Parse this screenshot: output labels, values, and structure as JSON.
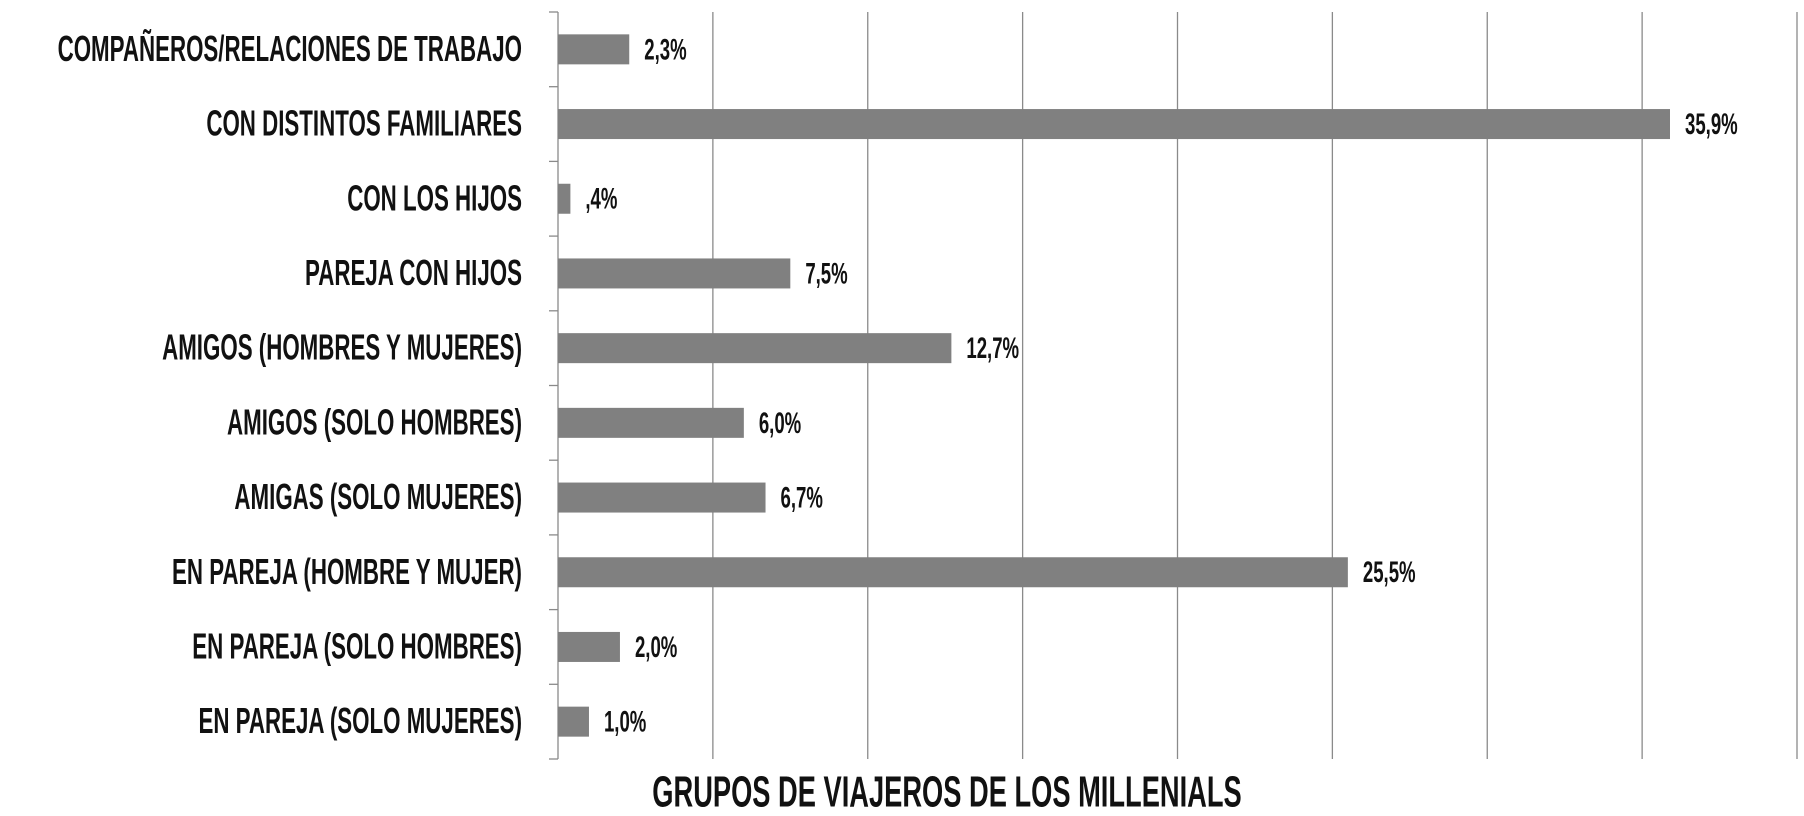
{
  "chart_data": {
    "type": "bar",
    "orientation": "horizontal",
    "title": "GRUPOS DE VIAJEROS DE LOS MILLENIALS",
    "categories": [
      "COMPAÑEROS/RELACIONES  DE TRABAJO",
      "CON DISTINTOS FAMILIARES",
      "CON LOS HIJOS",
      "PAREJA CON HIJOS",
      "AMIGOS (HOMBRES Y MUJERES)",
      "AMIGOS (SOLO HOMBRES)",
      "AMIGAS (SOLO MUJERES)",
      "EN PAREJA (HOMBRE Y MUJER)",
      "EN PAREJA (SOLO HOMBRES)",
      "EN PAREJA (SOLO MUJERES)"
    ],
    "values": [
      2.3,
      35.9,
      0.4,
      7.5,
      12.7,
      6.0,
      6.7,
      25.5,
      2.0,
      1.0
    ],
    "value_labels": [
      "2,3%",
      "35,9%",
      ",4%",
      "7,5%",
      "12,7%",
      "6,0%",
      "6,7%",
      "25,5%",
      "2,0%",
      "1,0%"
    ],
    "color": "#808080",
    "xlim": [
      0,
      40
    ],
    "xticks": [
      0,
      5,
      10,
      15,
      20,
      25,
      30,
      35,
      40
    ],
    "grid": true
  }
}
